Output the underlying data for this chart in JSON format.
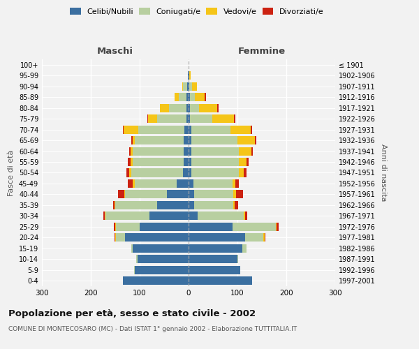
{
  "age_groups": [
    "0-4",
    "5-9",
    "10-14",
    "15-19",
    "20-24",
    "25-29",
    "30-34",
    "35-39",
    "40-44",
    "45-49",
    "50-54",
    "55-59",
    "60-64",
    "65-69",
    "70-74",
    "75-79",
    "80-84",
    "85-89",
    "90-94",
    "95-99",
    "100+"
  ],
  "birth_years": [
    "1997-2001",
    "1992-1996",
    "1987-1991",
    "1982-1986",
    "1977-1981",
    "1972-1976",
    "1967-1971",
    "1962-1966",
    "1957-1961",
    "1952-1956",
    "1947-1951",
    "1942-1946",
    "1937-1941",
    "1932-1936",
    "1927-1931",
    "1922-1926",
    "1917-1921",
    "1912-1916",
    "1907-1911",
    "1902-1906",
    "≤ 1901"
  ],
  "maschi": {
    "celibi": [
      135,
      110,
      105,
      115,
      130,
      100,
      80,
      65,
      45,
      25,
      12,
      10,
      10,
      10,
      8,
      5,
      5,
      5,
      3,
      1,
      0
    ],
    "coniugati": [
      0,
      2,
      2,
      2,
      18,
      48,
      90,
      85,
      85,
      85,
      105,
      105,
      105,
      100,
      95,
      60,
      35,
      15,
      8,
      1,
      0
    ],
    "vedovi": [
      0,
      0,
      0,
      0,
      2,
      2,
      2,
      2,
      2,
      5,
      5,
      4,
      4,
      5,
      30,
      18,
      18,
      8,
      2,
      0,
      0
    ],
    "divorziati": [
      0,
      0,
      0,
      0,
      2,
      3,
      3,
      3,
      12,
      10,
      5,
      6,
      3,
      2,
      2,
      2,
      0,
      0,
      0,
      0,
      0
    ]
  },
  "femmine": {
    "nubili": [
      130,
      105,
      100,
      110,
      115,
      90,
      18,
      12,
      12,
      10,
      5,
      5,
      5,
      5,
      5,
      3,
      3,
      3,
      2,
      1,
      0
    ],
    "coniugate": [
      0,
      0,
      2,
      8,
      38,
      88,
      95,
      80,
      80,
      80,
      98,
      98,
      98,
      95,
      80,
      45,
      18,
      10,
      5,
      1,
      0
    ],
    "vedove": [
      0,
      0,
      0,
      0,
      2,
      2,
      2,
      2,
      5,
      5,
      10,
      15,
      25,
      35,
      42,
      45,
      38,
      20,
      10,
      2,
      0
    ],
    "divorziate": [
      0,
      0,
      0,
      0,
      2,
      4,
      5,
      8,
      15,
      8,
      5,
      5,
      4,
      3,
      3,
      2,
      2,
      2,
      0,
      0,
      0
    ]
  },
  "colors": {
    "celibi_nubili": "#3b6fa0",
    "coniugati": "#b8cfa0",
    "vedovi": "#f5c518",
    "divorziati": "#cc2211"
  },
  "title": "Popolazione per età, sesso e stato civile - 2002",
  "subtitle": "COMUNE DI MONTECOSARO (MC) - Dati ISTAT 1° gennaio 2002 - Elaborazione TUTTITALIA.IT",
  "xlabel_left": "Maschi",
  "xlabel_right": "Femmine",
  "ylabel_left": "Fasce di età",
  "ylabel_right": "Anni di nascita",
  "legend_labels": [
    "Celibi/Nubili",
    "Coniugati/e",
    "Vedovi/e",
    "Divorziati/e"
  ],
  "xmin": -300,
  "xmax": 300,
  "xtick_vals": [
    -300,
    -200,
    -100,
    0,
    100,
    200,
    300
  ],
  "background_color": "#f2f2f2"
}
